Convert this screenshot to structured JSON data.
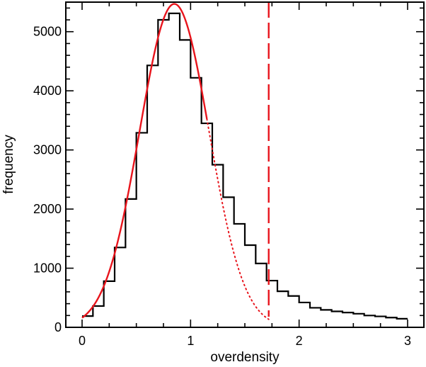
{
  "chart_data": {
    "type": "line",
    "title": "",
    "xlabel": "overdensity",
    "ylabel": "frequency",
    "xlim": [
      -0.15,
      3.15
    ],
    "ylim": [
      0,
      5500
    ],
    "x_ticks": [
      0,
      1,
      2,
      3
    ],
    "y_ticks": [
      0,
      1000,
      2000,
      3000,
      4000,
      5000
    ],
    "x_tick_labels": [
      "0",
      "1",
      "2",
      "3"
    ],
    "y_tick_labels": [
      "0",
      "1000",
      "2000",
      "3000",
      "4000",
      "5000"
    ],
    "grid": false,
    "legend": "none",
    "series": [
      {
        "kind": "histogram-step",
        "color": "#000000",
        "bin_edges": [
          0,
          0.1,
          0.2,
          0.3,
          0.4,
          0.5,
          0.6,
          0.7,
          0.8,
          0.9,
          1.0,
          1.1,
          1.2,
          1.3,
          1.4,
          1.5,
          1.6,
          1.7,
          1.8,
          1.9,
          2.0,
          2.1,
          2.2,
          2.3,
          2.4,
          2.5,
          2.6,
          2.7,
          2.8,
          2.9,
          3.0
        ],
        "counts": [
          190,
          360,
          780,
          1350,
          2170,
          3290,
          4430,
          5200,
          5310,
          4860,
          4220,
          3450,
          2750,
          2200,
          1750,
          1390,
          1080,
          790,
          610,
          530,
          420,
          330,
          295,
          270,
          250,
          230,
          200,
          185,
          165,
          145
        ]
      },
      {
        "kind": "gaussian-fit",
        "color": "#e8141c",
        "style": "solid",
        "amplitude": 5470,
        "mean": 0.85,
        "sigma": 0.32,
        "x_range": [
          0,
          1.15
        ]
      },
      {
        "kind": "gaussian-fit-extrapolation",
        "color": "#e8141c",
        "style": "dotted",
        "amplitude": 5470,
        "mean": 0.85,
        "sigma": 0.32,
        "x_range": [
          1.15,
          1.72
        ]
      },
      {
        "kind": "vertical-line",
        "color": "#e8141c",
        "style": "dashed",
        "x": 1.72
      }
    ]
  }
}
